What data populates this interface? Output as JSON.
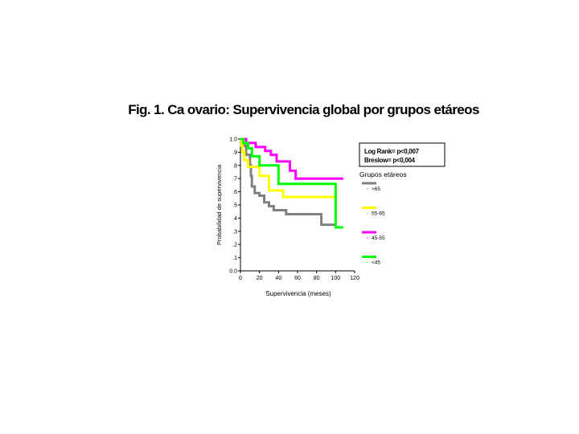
{
  "title": "Fig. 1. Ca ovario: Supervivencia global por grupos etáreos",
  "chart_data": {
    "type": "line",
    "subtype": "kaplan-meier-step",
    "xlabel": "Supervivencia (meses)",
    "ylabel": "Probabilidad de supervivencia",
    "xlim": [
      0,
      120
    ],
    "ylim": [
      0.0,
      1.0
    ],
    "x_ticks": [
      "0",
      "20",
      "40",
      "60",
      "80",
      "100",
      "120"
    ],
    "y_ticks": [
      "0.0",
      ".1",
      ".2",
      ".3",
      ".4",
      ".5",
      ".6",
      ".7",
      ".8",
      ".9",
      "1.0"
    ],
    "stats": [
      "Log Rank= p<0,007",
      "Breslow= p<0,004"
    ],
    "legend_title": "Grupos etáreos",
    "legend_position": "right",
    "grid": false,
    "series": [
      {
        "name": ">65",
        "color": "#808080",
        "x": [
          0,
          3,
          6,
          10,
          11,
          12,
          15,
          20,
          25,
          30,
          35,
          48,
          85,
          100,
          100
        ],
        "y": [
          1.0,
          0.95,
          0.88,
          0.8,
          0.72,
          0.64,
          0.59,
          0.57,
          0.52,
          0.49,
          0.46,
          0.43,
          0.35,
          0.34,
          0.34
        ]
      },
      {
        "name": "55-65",
        "color": "#ffff00",
        "x": [
          0,
          1,
          2,
          4,
          8,
          20,
          30,
          45,
          100
        ],
        "y": [
          1.0,
          0.95,
          0.9,
          0.84,
          0.79,
          0.72,
          0.61,
          0.56,
          0.56
        ]
      },
      {
        "name": "45-55",
        "color": "#ff00ff",
        "x": [
          0,
          6,
          16,
          26,
          32,
          38,
          52,
          58,
          62,
          108
        ],
        "y": [
          1.0,
          0.97,
          0.94,
          0.91,
          0.88,
          0.83,
          0.76,
          0.7,
          0.7,
          0.7
        ]
      },
      {
        "name": "<45",
        "color": "#00ff00",
        "x": [
          0,
          3,
          8,
          12,
          20,
          40,
          100,
          100,
          108
        ],
        "y": [
          1.0,
          0.97,
          0.93,
          0.87,
          0.8,
          0.66,
          0.66,
          0.33,
          0.33
        ]
      }
    ]
  }
}
